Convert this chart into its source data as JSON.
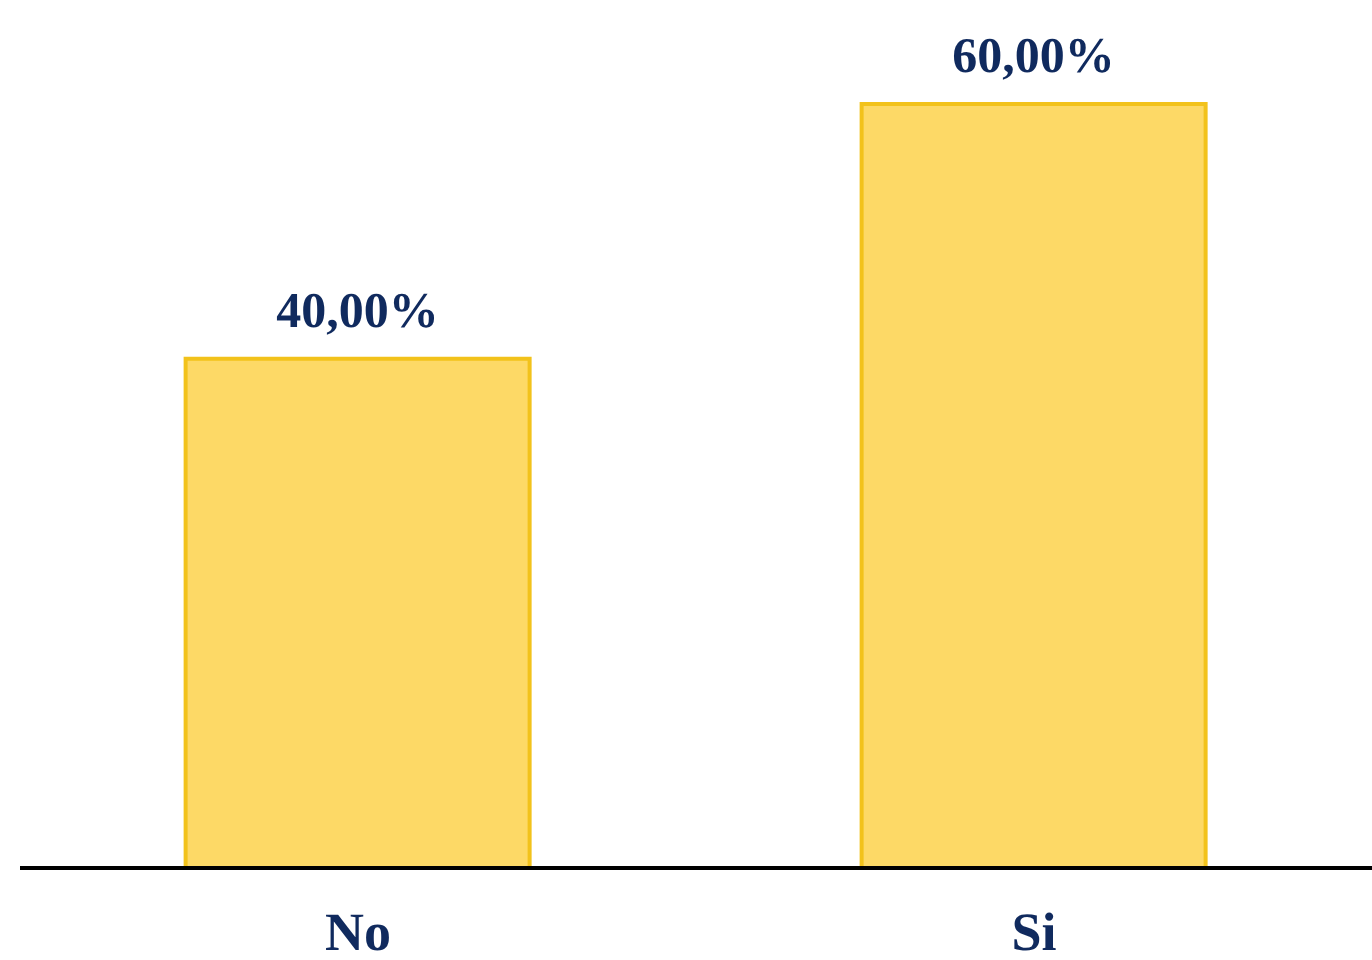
{
  "chart_data": {
    "type": "bar",
    "categories": [
      "No",
      "Si"
    ],
    "values": [
      40,
      60
    ],
    "value_labels": [
      "40,00%",
      "60,00%"
    ],
    "color": "#fdd966",
    "grid": false
  }
}
